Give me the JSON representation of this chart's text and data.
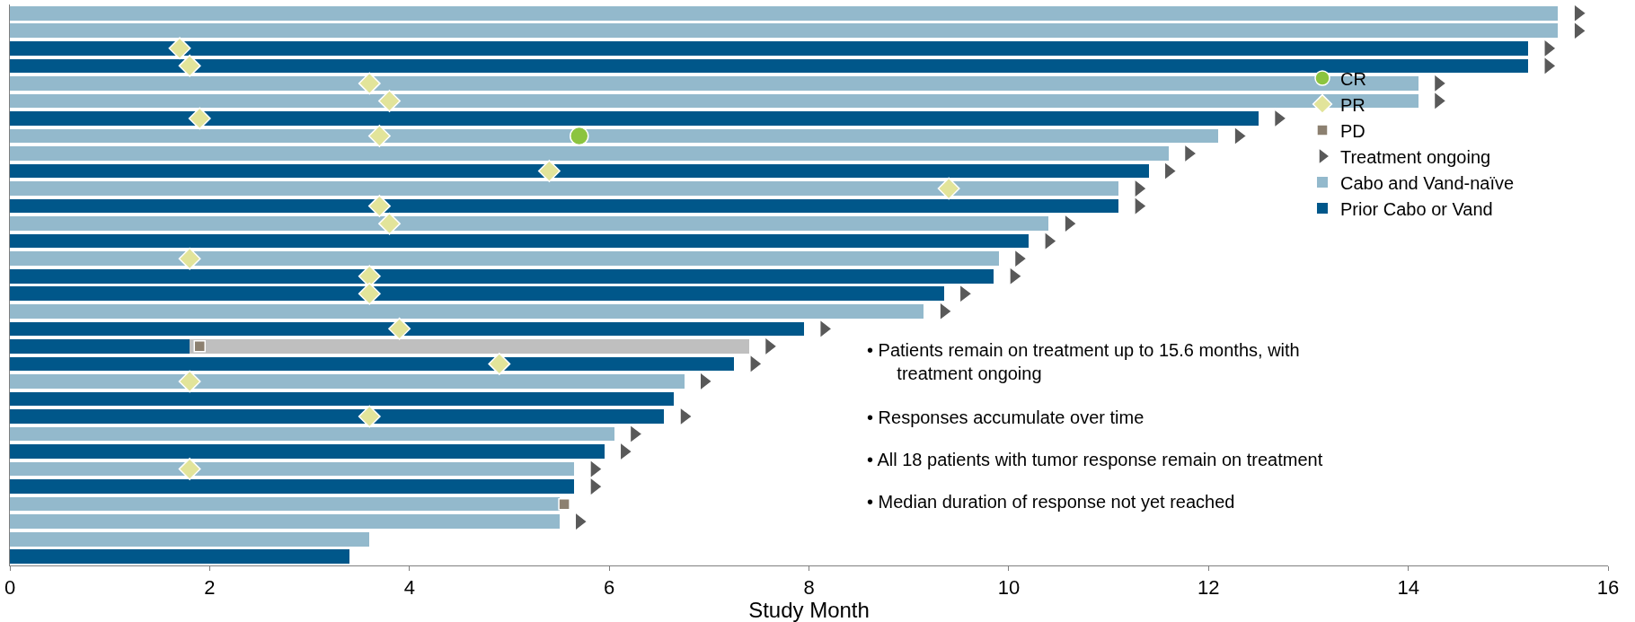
{
  "chart_data": {
    "type": "bar",
    "orientation": "horizontal",
    "stacked": true,
    "xlabel": "Study Month",
    "xlim": [
      0,
      16
    ],
    "xticks": [
      0,
      2,
      4,
      6,
      8,
      10,
      12,
      14,
      16
    ],
    "legend": "right",
    "categories": [
      null,
      null,
      null,
      null,
      null,
      null,
      null,
      null,
      null,
      null,
      null,
      null,
      null,
      null,
      null,
      null,
      null,
      null,
      null,
      null,
      null,
      null,
      null,
      null,
      null,
      null,
      null,
      null,
      null,
      null,
      null,
      null
    ],
    "series": [
      {
        "name": "Cabo and Vand-naïve",
        "color": "#93b9cc",
        "values": [
          15.5,
          15.5,
          null,
          null,
          14.1,
          14.1,
          null,
          12.1,
          11.6,
          null,
          11.1,
          null,
          10.4,
          null,
          9.9,
          null,
          null,
          9.15,
          null,
          null,
          null,
          6.75,
          null,
          null,
          6.05,
          null,
          5.65,
          null,
          5.5,
          5.5,
          3.6,
          null
        ]
      },
      {
        "name": "Prior Cabo or Vand",
        "color": "#00578a",
        "values": [
          null,
          null,
          15.2,
          15.2,
          null,
          null,
          12.5,
          null,
          null,
          11.4,
          null,
          11.1,
          null,
          10.2,
          null,
          9.85,
          9.35,
          null,
          7.95,
          1.8,
          7.25,
          null,
          6.65,
          6.55,
          null,
          5.95,
          null,
          5.65,
          null,
          null,
          null,
          3.4
        ]
      },
      {
        "color": "#bfbfbf",
        "values": [
          null,
          null,
          null,
          null,
          null,
          null,
          null,
          null,
          null,
          null,
          null,
          null,
          null,
          null,
          null,
          null,
          null,
          null,
          null,
          5.6,
          null,
          null,
          null,
          null,
          null,
          null,
          null,
          null,
          null,
          null,
          null,
          null
        ]
      },
      {
        "type": "scatter",
        "name": "CR",
        "color": "#8cc43f",
        "marker": "circle",
        "values": [
          null,
          null,
          null,
          null,
          null,
          null,
          null,
          5.7,
          null,
          null,
          null,
          null,
          null,
          null,
          null,
          null,
          null,
          null,
          null,
          null,
          null,
          null,
          null,
          null,
          null,
          null,
          null,
          null,
          null,
          null,
          null,
          null
        ]
      },
      {
        "type": "scatter",
        "name": "PR",
        "color": "#e2e49a",
        "marker": "diamond",
        "values": [
          null,
          null,
          1.7,
          1.8,
          3.6,
          3.8,
          1.9,
          3.7,
          null,
          5.4,
          9.4,
          3.7,
          3.8,
          null,
          1.8,
          3.6,
          3.6,
          null,
          3.9,
          null,
          4.9,
          1.8,
          null,
          3.6,
          null,
          null,
          1.8,
          null,
          null,
          null,
          null,
          null
        ]
      },
      {
        "type": "scatter",
        "name": "PD",
        "color": "#8c8070",
        "marker": "square",
        "values": [
          null,
          null,
          null,
          null,
          null,
          null,
          null,
          null,
          null,
          null,
          null,
          null,
          null,
          null,
          null,
          null,
          null,
          null,
          null,
          1.9,
          null,
          null,
          null,
          null,
          null,
          null,
          null,
          null,
          5.55,
          null,
          null,
          null
        ]
      },
      {
        "type": "scatter",
        "name": "Treatment ongoing",
        "color": "#595959",
        "marker": "triangle",
        "values": [
          15.7,
          15.7,
          15.4,
          15.4,
          14.3,
          14.3,
          12.7,
          12.3,
          11.8,
          11.6,
          11.3,
          11.3,
          10.6,
          10.4,
          10.1,
          10.05,
          9.55,
          9.35,
          8.15,
          7.6,
          7.45,
          6.95,
          null,
          6.75,
          6.25,
          6.15,
          5.85,
          5.85,
          null,
          5.7,
          null,
          null
        ]
      }
    ],
    "annotations": [
      "• Patients remain on treatment up to 15.6 months, with treatment ongoing",
      "• Responses accumulate over time",
      "• All 18 patients with tumor response remain on treatment",
      "• Median duration of response not yet reached"
    ]
  }
}
